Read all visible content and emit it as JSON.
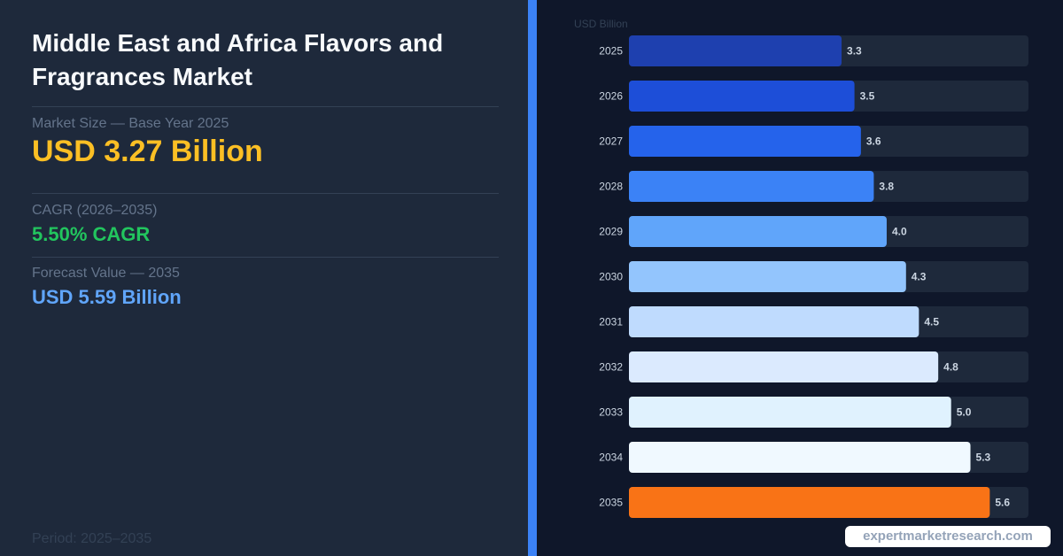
{
  "title": "Middle East and Africa Flavors and Fragrances Market",
  "market_size": {
    "label": "Market Size — Base Year 2025",
    "value": "USD 3.27 Billion"
  },
  "cagr": {
    "label": "CAGR (2026–2035)",
    "value": "5.50% CAGR"
  },
  "forecast": {
    "label": "Forecast Value — 2035",
    "value": "USD 5.59 Billion"
  },
  "period": "Period: 2025–2035",
  "brand": "expertmarketresearch.com",
  "colors": {
    "accent": "#3b82f6",
    "market_size": "#fbbf24",
    "cagr": "#22c55e",
    "forecast": "#60a5fa",
    "highlight_bar": "#f97316"
  },
  "chart_data": {
    "type": "bar",
    "orientation": "horizontal",
    "unit_label": "USD Billion",
    "categories": [
      "2025",
      "2026",
      "2027",
      "2028",
      "2029",
      "2030",
      "2031",
      "2032",
      "2033",
      "2034",
      "2035"
    ],
    "values": [
      3.3,
      3.5,
      3.6,
      3.8,
      4.0,
      4.3,
      4.5,
      4.8,
      5.0,
      5.3,
      5.6
    ],
    "value_labels": [
      "3.3",
      "3.5",
      "3.6",
      "3.8",
      "4.0",
      "4.3",
      "4.5",
      "4.8",
      "5.0",
      "5.3",
      "5.6"
    ],
    "bar_colors": [
      "#1e40af",
      "#1d4ed8",
      "#2563eb",
      "#3b82f6",
      "#60a5fa",
      "#93c5fd",
      "#bfdbfe",
      "#dbeafe",
      "#e0f2fe",
      "#f0f9ff",
      "#f97316"
    ],
    "track_color": "#1e293b",
    "xlim": [
      0,
      6.2
    ],
    "grid": false,
    "legend": "none"
  }
}
